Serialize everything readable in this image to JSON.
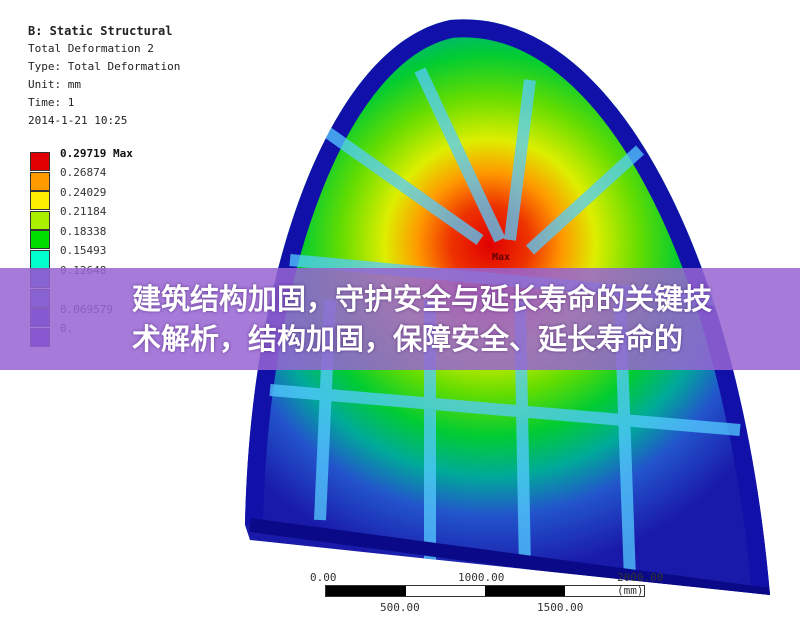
{
  "info": {
    "title": "B: Static Structural",
    "result": "Total Deformation 2",
    "type": "Type: Total Deformation",
    "unit": "Unit: mm",
    "time": "Time: 1",
    "date": "2014-1-21 10:25"
  },
  "legend": {
    "max_label": "0.29719 Max",
    "values": [
      "0.26874",
      "0.24029",
      "0.21184",
      "0.18338",
      "0.15493",
      "0.12648",
      "",
      "0.069579",
      "0."
    ],
    "colors": [
      "#e00000",
      "#ff9900",
      "#ffee00",
      "#aaee00",
      "#00dd00",
      "#00ffcc",
      "#3366dd",
      "#3355cc",
      "#2222cc",
      "#3300cc"
    ]
  },
  "model": {
    "max_marker": "Max"
  },
  "scale_bar": {
    "top_labels": [
      "0.00",
      "1000.00",
      "2000.00 (mm)"
    ],
    "bottom_labels": [
      "500.00",
      "1500.00"
    ]
  },
  "banner": {
    "line1": "建筑结构加固，守护安全与延长寿命的关键技",
    "line2": "术解析，结构加固，保障安全、延长寿命的"
  }
}
